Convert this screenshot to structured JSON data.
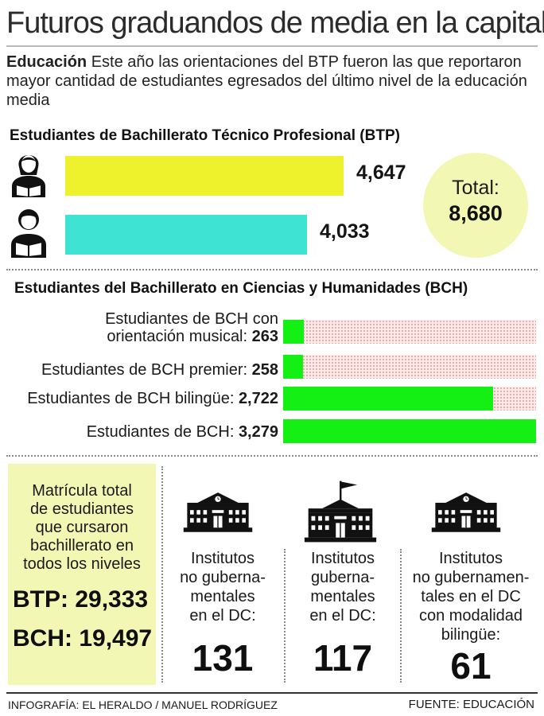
{
  "title": "Futuros graduandos de media en la capital",
  "intro": {
    "lead": "Educación",
    "text": " Este año las orientaciones del BTP fueron las que reportaron mayor cantidad de estudiantes egresados del último nivel de la educación media"
  },
  "chart_data": [
    {
      "type": "bar",
      "orientation": "horizontal",
      "title": "Estudiantes de Bachillerato Técnico Profesional  (BTP)",
      "categories": [
        "female-student-icon",
        "male-student-icon"
      ],
      "values": [
        4647,
        4033
      ],
      "value_labels": [
        "4,647",
        "4,033"
      ],
      "colors": [
        "#eef22c",
        "#3fe3d3"
      ],
      "xlim": [
        0,
        4647
      ],
      "total_label": "Total:",
      "total_value": "8,680"
    },
    {
      "type": "bar",
      "orientation": "horizontal",
      "title": "Estudiantes del Bachillerato en Ciencias y Humanidades (BCH)",
      "categories": [
        "Estudiantes de BCH  con orientación musical:",
        "Estudiantes de BCH  premier:",
        "Estudiantes de BCH  bilingüe:",
        "Estudiantes de BCH:"
      ],
      "label_lines": [
        [
          "Estudiantes de BCH  con",
          "orientación musical:"
        ],
        [
          "Estudiantes de BCH  premier:"
        ],
        [
          "Estudiantes de BCH  bilingüe:"
        ],
        [
          "Estudiantes de BCH:"
        ]
      ],
      "values": [
        263,
        258,
        2722,
        3279
      ],
      "value_labels": [
        "263",
        "258",
        "2,722",
        "3,279"
      ],
      "color": "#14f014",
      "xlim": [
        0,
        3279
      ]
    }
  ],
  "matricula": {
    "lines": [
      "Matrícula total",
      "de estudiantes",
      "que cursaron",
      "bachillerato en",
      "todos los niveles"
    ],
    "btp": "BTP: 29,333",
    "bch": "BCH: 19,497"
  },
  "institutes": [
    {
      "icon": "school-building-icon",
      "lines": [
        "Institutos",
        "no guberna-",
        "mentales",
        "en el DC:"
      ],
      "value": "131"
    },
    {
      "icon": "school-flag-building-icon",
      "lines": [
        "Institutos",
        "guberna-",
        "mentales",
        "en el DC:"
      ],
      "value": "117"
    },
    {
      "icon": "school-building-icon",
      "lines": [
        "Institutos",
        "no gubernamen-",
        "tales en el DC",
        "con modalidad",
        "bilingüe:"
      ],
      "value": "61"
    }
  ],
  "footer": {
    "credit": "INFOGRAFÍA: EL HERALDO / MANUEL RODRÍGUEZ",
    "source": "FUENTE: EDUCACIÓN"
  },
  "colors": {
    "btp_female": "#eef22c",
    "btp_male": "#3fe3d3",
    "bch_bar": "#14f014",
    "highlight_fill": "#f3f7b4"
  }
}
